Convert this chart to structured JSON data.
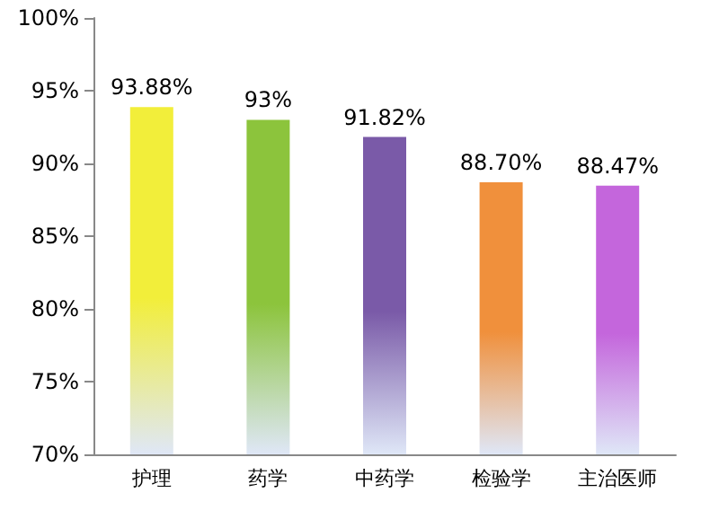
{
  "chart_data": {
    "type": "bar",
    "categories": [
      "护理",
      "药学",
      "中药学",
      "检验学",
      "主治医师"
    ],
    "values": [
      93.88,
      93,
      91.82,
      88.7,
      88.47
    ],
    "colors": [
      "#f2ee3a",
      "#8cc43c",
      "#7a5aa8",
      "#f0903c",
      "#c466dc"
    ],
    "value_labels": [
      "93.88%",
      "93%",
      "91.82%",
      "88.70%",
      "88.47%"
    ],
    "ylim": [
      70,
      100
    ],
    "yticks": [
      {
        "value": 70,
        "label": "70%"
      },
      {
        "value": 75,
        "label": "75%"
      },
      {
        "value": 80,
        "label": "80%"
      },
      {
        "value": 85,
        "label": "85%"
      },
      {
        "value": 90,
        "label": "90%"
      },
      {
        "value": 95,
        "label": "95%"
      },
      {
        "value": 100,
        "label": "100%"
      }
    ],
    "grid": false
  }
}
